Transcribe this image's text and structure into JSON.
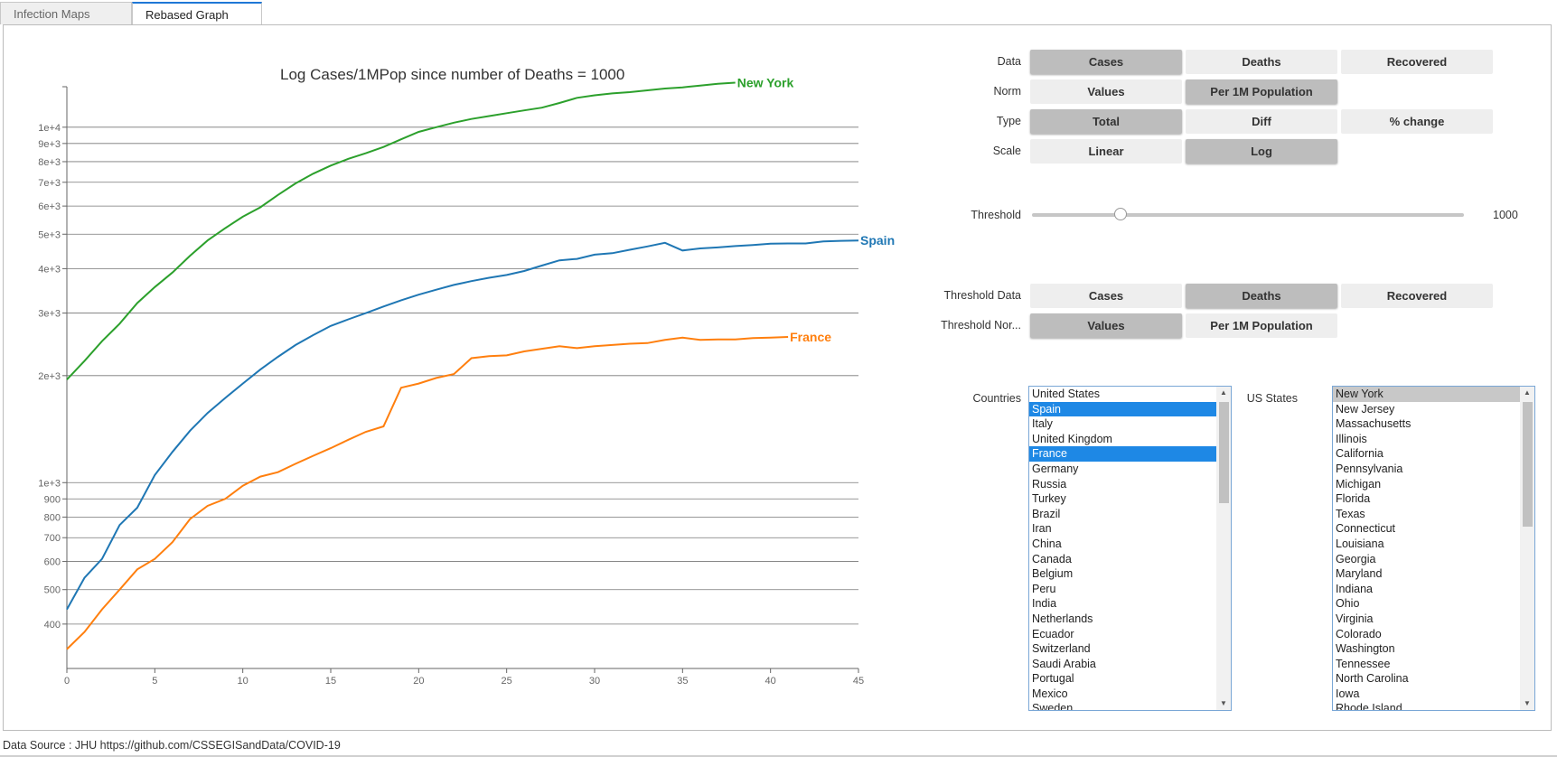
{
  "tabs": [
    {
      "label": "Infection Maps",
      "active": false
    },
    {
      "label": "Rebased Graph",
      "active": true
    }
  ],
  "controls": {
    "data": {
      "label": "Data",
      "options": [
        "Cases",
        "Deaths",
        "Recovered"
      ],
      "selected": "Cases"
    },
    "norm": {
      "label": "Norm",
      "options": [
        "Values",
        "Per 1M Population"
      ],
      "selected": "Per 1M Population"
    },
    "type": {
      "label": "Type",
      "options": [
        "Total",
        "Diff",
        "% change"
      ],
      "selected": "Total"
    },
    "scale": {
      "label": "Scale",
      "options": [
        "Linear",
        "Log"
      ],
      "selected": "Log"
    },
    "threshold": {
      "label": "Threshold",
      "value": "1000",
      "slider_fraction": 0.205
    },
    "threshold_data": {
      "label": "Threshold Data",
      "options": [
        "Cases",
        "Deaths",
        "Recovered"
      ],
      "selected": "Deaths"
    },
    "threshold_norm": {
      "label": "Threshold Nor...",
      "options": [
        "Values",
        "Per 1M Population"
      ],
      "selected": "Values"
    }
  },
  "countries": {
    "label": "Countries",
    "items": [
      "United States",
      "Spain",
      "Italy",
      "United Kingdom",
      "France",
      "Germany",
      "Russia",
      "Turkey",
      "Brazil",
      "Iran",
      "China",
      "Canada",
      "Belgium",
      "Peru",
      "India",
      "Netherlands",
      "Ecuador",
      "Switzerland",
      "Saudi Arabia",
      "Portugal",
      "Mexico",
      "Sweden"
    ],
    "selected": [
      "Spain",
      "France"
    ]
  },
  "us_states": {
    "label": "US States",
    "items": [
      "New York",
      "New Jersey",
      "Massachusetts",
      "Illinois",
      "California",
      "Pennsylvania",
      "Michigan",
      "Florida",
      "Texas",
      "Connecticut",
      "Louisiana",
      "Georgia",
      "Maryland",
      "Indiana",
      "Ohio",
      "Virginia",
      "Colorado",
      "Washington",
      "Tennessee",
      "North Carolina",
      "Iowa",
      "Rhode Island"
    ],
    "selected": [
      "New York"
    ]
  },
  "footer": {
    "text": "Data Source : JHU https://github.com/CSSEGISandData/COVID-19"
  },
  "chart_data": {
    "type": "line",
    "title": "Log Cases/1MPop since number of Deaths = 1000",
    "xlabel": "",
    "ylabel": "",
    "scale": "log",
    "xlim": [
      0,
      45
    ],
    "xticks": [
      0,
      5,
      10,
      15,
      20,
      25,
      30,
      35,
      40,
      45
    ],
    "yticks": [
      400,
      500,
      600,
      700,
      800,
      900,
      1000,
      2000,
      3000,
      4000,
      5000,
      6000,
      7000,
      8000,
      9000,
      10000
    ],
    "ytick_labels": [
      "400",
      "500",
      "600",
      "700",
      "800",
      "900",
      "1e+3",
      "2e+3",
      "3e+3",
      "4e+3",
      "5e+3",
      "6e+3",
      "7e+3",
      "8e+3",
      "9e+3",
      "1e+4"
    ],
    "grid": true,
    "series": [
      {
        "name": "New York",
        "color": "#2ca02c",
        "x": [
          0,
          1,
          2,
          3,
          4,
          5,
          6,
          7,
          8,
          9,
          10,
          11,
          12,
          13,
          14,
          15,
          16,
          17,
          18,
          19,
          20,
          21,
          22,
          23,
          24,
          25,
          26,
          27,
          28,
          29,
          30,
          31,
          32,
          33,
          34,
          35,
          36,
          37,
          38
        ],
        "y": [
          1950,
          2200,
          2500,
          2800,
          3200,
          3550,
          3900,
          4350,
          4800,
          5200,
          5600,
          5950,
          6450,
          6950,
          7400,
          7800,
          8150,
          8450,
          8800,
          9250,
          9700,
          10000,
          10300,
          10550,
          10750,
          10950,
          11150,
          11350,
          11700,
          12100,
          12300,
          12450,
          12550,
          12700,
          12850,
          12950,
          13100,
          13250,
          13350
        ]
      },
      {
        "name": "Spain",
        "color": "#1f77b4",
        "x": [
          0,
          1,
          2,
          3,
          4,
          5,
          6,
          7,
          8,
          9,
          10,
          11,
          12,
          13,
          14,
          15,
          16,
          17,
          18,
          19,
          20,
          21,
          22,
          23,
          24,
          25,
          26,
          27,
          28,
          29,
          30,
          31,
          32,
          33,
          34,
          35,
          36,
          37,
          38,
          39,
          40,
          41,
          42,
          43,
          44,
          45
        ],
        "y": [
          440,
          540,
          610,
          760,
          850,
          1050,
          1220,
          1400,
          1570,
          1730,
          1900,
          2080,
          2260,
          2440,
          2600,
          2760,
          2880,
          3000,
          3130,
          3260,
          3380,
          3490,
          3600,
          3690,
          3770,
          3840,
          3940,
          4080,
          4220,
          4260,
          4380,
          4420,
          4520,
          4620,
          4730,
          4500,
          4560,
          4590,
          4630,
          4660,
          4700,
          4710,
          4710,
          4770,
          4790,
          4800
        ]
      },
      {
        "name": "France",
        "color": "#ff7f0e",
        "x": [
          0,
          1,
          2,
          3,
          4,
          5,
          6,
          7,
          8,
          9,
          10,
          11,
          12,
          13,
          14,
          15,
          16,
          17,
          18,
          19,
          20,
          21,
          22,
          23,
          24,
          25,
          26,
          27,
          28,
          29,
          30,
          31,
          32,
          33,
          34,
          35,
          36,
          37,
          38,
          39,
          40,
          41
        ],
        "y": [
          340,
          380,
          440,
          500,
          570,
          610,
          680,
          790,
          860,
          900,
          980,
          1040,
          1070,
          1130,
          1190,
          1250,
          1320,
          1390,
          1440,
          1850,
          1900,
          1970,
          2020,
          2240,
          2270,
          2280,
          2340,
          2380,
          2420,
          2390,
          2420,
          2440,
          2460,
          2470,
          2520,
          2560,
          2520,
          2530,
          2530,
          2550,
          2560,
          2570
        ]
      }
    ]
  }
}
